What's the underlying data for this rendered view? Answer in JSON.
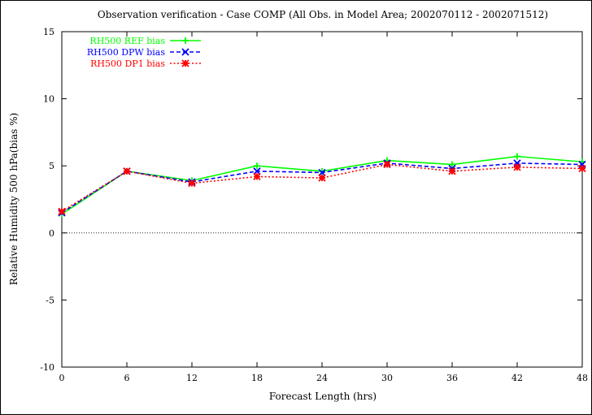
{
  "chart_data": {
    "type": "line",
    "title": "Observation verification - Case COMP (All Obs. in Model Area; 2002070112 - 2002071512)",
    "xlabel": "Forecast Length (hrs)",
    "ylabel": "Relative Humidity 500 hPa(bias %)",
    "x": [
      0,
      6,
      12,
      18,
      24,
      30,
      36,
      42,
      48
    ],
    "xticks": [
      "0",
      "6",
      "12",
      "18",
      "24",
      "30",
      "36",
      "42",
      "48"
    ],
    "yticks": [
      "15",
      "10",
      "5",
      "0",
      "-5",
      "-10"
    ],
    "ytick_values": [
      15,
      10,
      5,
      0,
      -5,
      -10
    ],
    "xlim": [
      0,
      48
    ],
    "ylim": [
      -10,
      15
    ],
    "zero_line": true,
    "legend_position": "top-left",
    "series": [
      {
        "name": "RH500 REF bias",
        "color": "#00ff00",
        "marker": "plus",
        "dash": "solid",
        "values": [
          1.4,
          4.6,
          3.9,
          5.0,
          4.6,
          5.4,
          5.1,
          5.7,
          5.3
        ]
      },
      {
        "name": "RH500 DPW bias",
        "color": "#0000ff",
        "marker": "cross",
        "dash": "dashed",
        "values": [
          1.5,
          4.6,
          3.8,
          4.6,
          4.5,
          5.2,
          4.8,
          5.2,
          5.1
        ]
      },
      {
        "name": "RH500 DP1 bias",
        "color": "#ff0000",
        "marker": "star",
        "dash": "dotted",
        "values": [
          1.6,
          4.6,
          3.7,
          4.2,
          4.1,
          5.1,
          4.6,
          4.9,
          4.8
        ]
      }
    ]
  }
}
